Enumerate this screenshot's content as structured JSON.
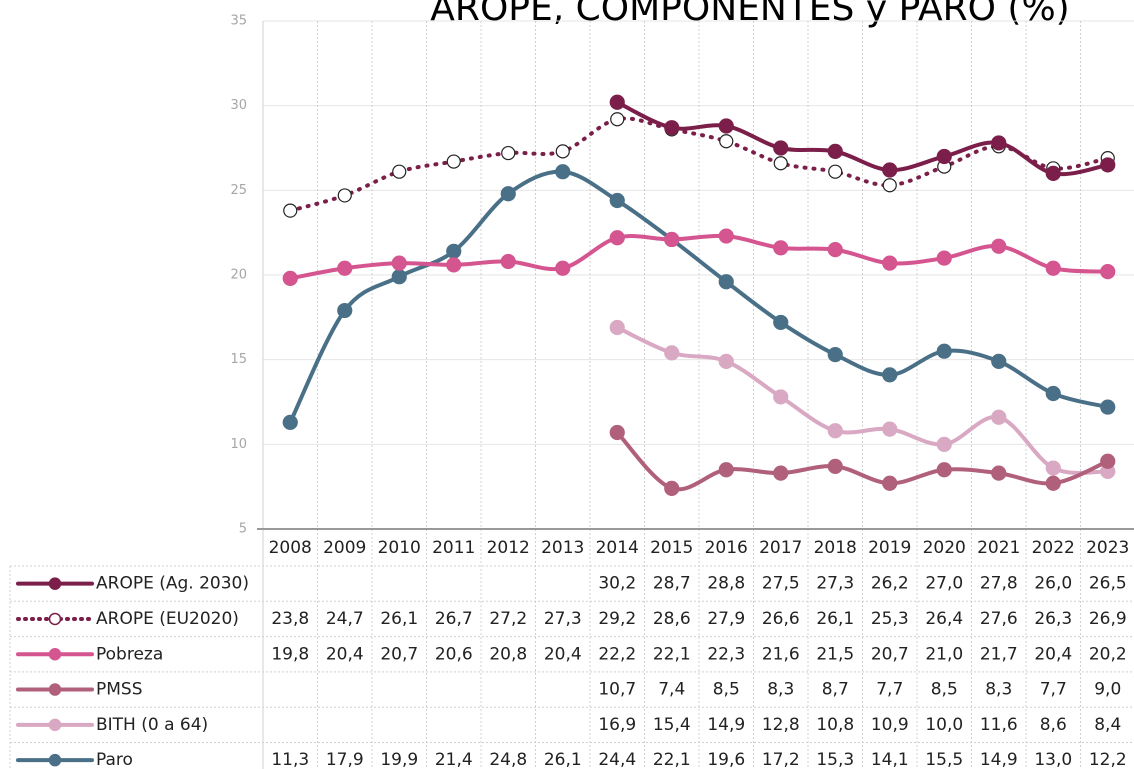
{
  "chart_data": {
    "type": "line",
    "title": "AROPE, COMPONENTES y PARO (%)",
    "categories": [
      "2008",
      "2009",
      "2010",
      "2011",
      "2012",
      "2013",
      "2014",
      "2015",
      "2016",
      "2017",
      "2018",
      "2019",
      "2020",
      "2021",
      "2022",
      "2023"
    ],
    "ylim": [
      5,
      35
    ],
    "yticks": [
      5,
      10,
      15,
      20,
      25,
      30,
      35
    ],
    "grid": true,
    "series": [
      {
        "name": "AROPE (Ag. 2030)",
        "color": "#7b1f4a",
        "dash": "solid",
        "marker_fill": "filled",
        "values": [
          null,
          null,
          null,
          null,
          null,
          null,
          30.2,
          28.7,
          28.8,
          27.5,
          27.3,
          26.2,
          27.0,
          27.8,
          26.0,
          26.5
        ],
        "value_labels": [
          null,
          null,
          null,
          null,
          null,
          null,
          "30,2",
          "28,7",
          "28,8",
          "27,5",
          "27,3",
          "26,2",
          "27,0",
          "27,8",
          "26,0",
          "26,5"
        ]
      },
      {
        "name": "AROPE (EU2020)",
        "color": "#7b1f4a",
        "dash": "dotted",
        "marker_fill": "open",
        "values": [
          23.8,
          24.7,
          26.1,
          26.7,
          27.2,
          27.3,
          29.2,
          28.6,
          27.9,
          26.6,
          26.1,
          25.3,
          26.4,
          27.6,
          26.3,
          26.9
        ],
        "value_labels": [
          "23,8",
          "24,7",
          "26,1",
          "26,7",
          "27,2",
          "27,3",
          "29,2",
          "28,6",
          "27,9",
          "26,6",
          "26,1",
          "25,3",
          "26,4",
          "27,6",
          "26,3",
          "26,9"
        ]
      },
      {
        "name": "Pobreza",
        "color": "#d4558f",
        "dash": "solid",
        "marker_fill": "filled",
        "values": [
          19.8,
          20.4,
          20.7,
          20.6,
          20.8,
          20.4,
          22.2,
          22.1,
          22.3,
          21.6,
          21.5,
          20.7,
          21.0,
          21.7,
          20.4,
          20.2
        ],
        "value_labels": [
          "19,8",
          "20,4",
          "20,7",
          "20,6",
          "20,8",
          "20,4",
          "22,2",
          "22,1",
          "22,3",
          "21,6",
          "21,5",
          "20,7",
          "21,0",
          "21,7",
          "20,4",
          "20,2"
        ]
      },
      {
        "name": "PMSS",
        "color": "#b0607a",
        "dash": "solid",
        "marker_fill": "filled",
        "values": [
          null,
          null,
          null,
          null,
          null,
          null,
          10.7,
          7.4,
          8.5,
          8.3,
          8.7,
          7.7,
          8.5,
          8.3,
          7.7,
          9.0
        ],
        "value_labels": [
          null,
          null,
          null,
          null,
          null,
          null,
          "10,7",
          "7,4",
          "8,5",
          "8,3",
          "8,7",
          "7,7",
          "8,5",
          "8,3",
          "7,7",
          "9,0"
        ]
      },
      {
        "name": "BITH (0 a 64)",
        "color": "#d9a8c2",
        "dash": "solid",
        "marker_fill": "filled",
        "values": [
          null,
          null,
          null,
          null,
          null,
          null,
          16.9,
          15.4,
          14.9,
          12.8,
          10.8,
          10.9,
          10.0,
          11.6,
          8.6,
          8.4
        ],
        "value_labels": [
          null,
          null,
          null,
          null,
          null,
          null,
          "16,9",
          "15,4",
          "14,9",
          "12,8",
          "10,8",
          "10,9",
          "10,0",
          "11,6",
          "8,6",
          "8,4"
        ]
      },
      {
        "name": "Paro",
        "color": "#4a7088",
        "dash": "solid",
        "marker_fill": "filled",
        "values": [
          11.3,
          17.9,
          19.9,
          21.4,
          24.8,
          26.1,
          24.4,
          22.1,
          19.6,
          17.2,
          15.3,
          14.1,
          15.5,
          14.9,
          13.0,
          12.2
        ],
        "value_labels": [
          "11,3",
          "17,9",
          "19,9",
          "21,4",
          "24,8",
          "26,1",
          "24,4",
          "22,1",
          "19,6",
          "17,2",
          "15,3",
          "14,1",
          "15,5",
          "14,9",
          "13,0",
          "12,2"
        ]
      }
    ]
  }
}
